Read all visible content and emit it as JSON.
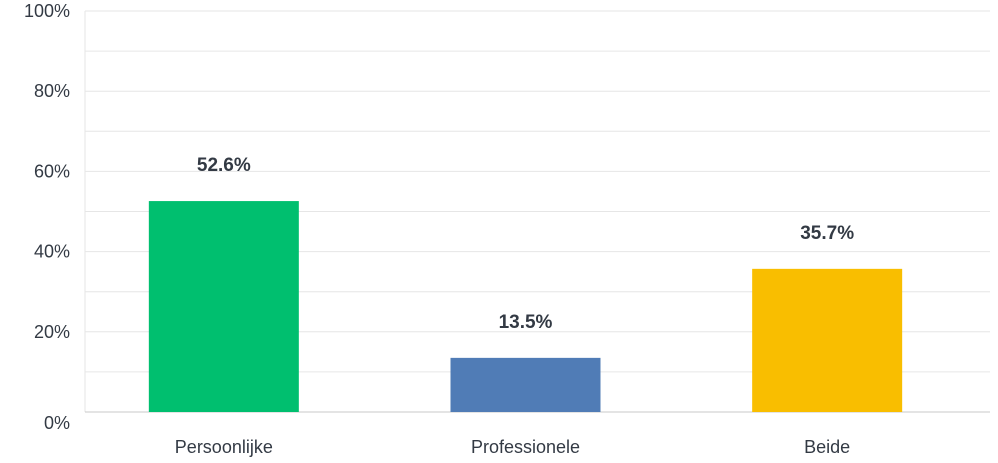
{
  "chart_data": {
    "type": "bar",
    "categories": [
      "Persoonlijke",
      "Professionele",
      "Beide"
    ],
    "values": [
      52.6,
      13.5,
      35.7
    ],
    "value_labels": [
      "52.6%",
      "13.5%",
      "35.7%"
    ],
    "colors": [
      "#00bf6f",
      "#507cb6",
      "#f9be00"
    ],
    "ylim": [
      0,
      100
    ],
    "yticks": [
      0,
      20,
      40,
      60,
      80,
      100
    ],
    "ytick_labels": [
      "0%",
      "20%",
      "40%",
      "60%",
      "80%",
      "100%"
    ],
    "grid": true,
    "title": "",
    "xlabel": "",
    "ylabel": ""
  }
}
